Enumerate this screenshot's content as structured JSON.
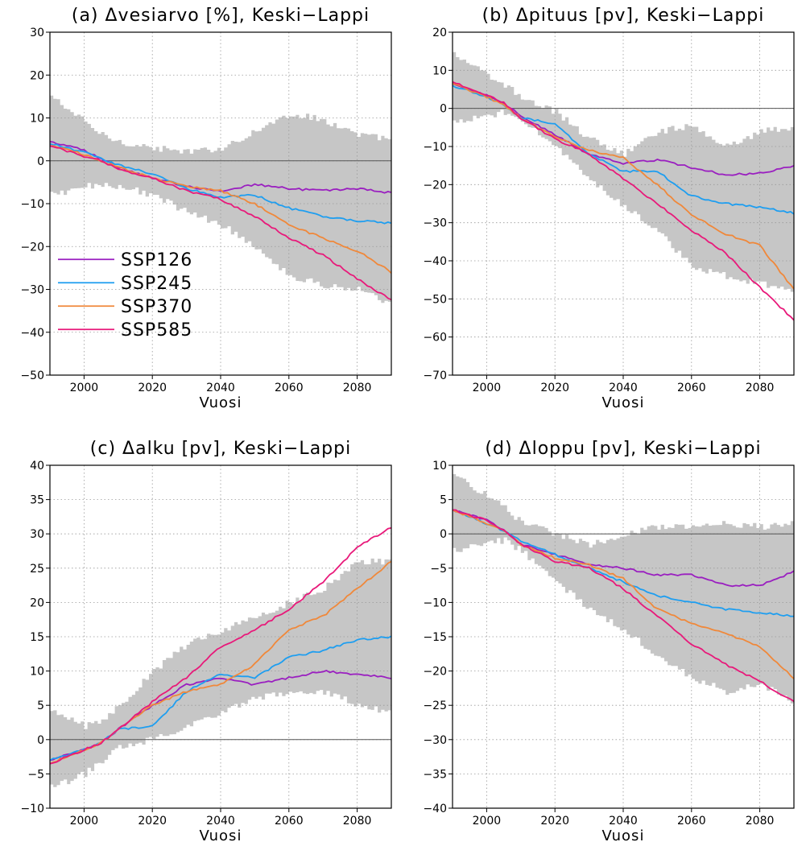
{
  "xlabel": "Vuosi",
  "colors": {
    "SSP126": "#9a1fc0",
    "SSP245": "#1e9ef0",
    "SSP370": "#f0883a",
    "SSP585": "#e8197a",
    "band": "#c6c6c6"
  },
  "legend": [
    "SSP126",
    "SSP245",
    "SSP370",
    "SSP585"
  ],
  "chart_data": [
    {
      "id": "a",
      "type": "line",
      "title": "(a) Δvesiarvo [%], Keski−Lappi",
      "xlabel": "Vuosi",
      "xlim": [
        1990,
        2090
      ],
      "ylim": [
        -50,
        30
      ],
      "yticks": [
        -50,
        -40,
        -30,
        -20,
        -10,
        0,
        10,
        20,
        30
      ],
      "xticks": [
        2000,
        2020,
        2040,
        2060,
        2080
      ],
      "x": [
        1990,
        2000,
        2005,
        2010,
        2020,
        2030,
        2040,
        2050,
        2060,
        2070,
        2080,
        2090
      ],
      "series": [
        {
          "name": "SSP126",
          "values": [
            4.5,
            2.5,
            0.5,
            -1.5,
            -4.0,
            -6.0,
            -7.0,
            -5.5,
            -6.5,
            -7.0,
            -6.5,
            -7.5
          ]
        },
        {
          "name": "SSP245",
          "values": [
            4.0,
            2.0,
            0.5,
            -1.0,
            -3.0,
            -6.5,
            -8.5,
            -8.0,
            -11.0,
            -13.0,
            -14.0,
            -14.5
          ]
        },
        {
          "name": "SSP370",
          "values": [
            3.5,
            1.5,
            0.0,
            -1.5,
            -4.0,
            -6.0,
            -7.0,
            -10.0,
            -15.0,
            -18.0,
            -21.0,
            -26.0
          ]
        },
        {
          "name": "SSP585",
          "values": [
            3.5,
            1.0,
            0.0,
            -2.0,
            -4.0,
            -7.0,
            -9.0,
            -13.0,
            -18.0,
            -22.0,
            -27.5,
            -32.5
          ]
        }
      ],
      "band": {
        "lower": [
          -8.0,
          -6.0,
          -5.5,
          -6.0,
          -8.0,
          -12.0,
          -15.0,
          -20.0,
          -27.0,
          -29.0,
          -30.0,
          -34.0
        ],
        "upper": [
          15.0,
          9.0,
          6.0,
          4.5,
          3.0,
          2.0,
          3.0,
          7.0,
          11.0,
          9.5,
          6.0,
          5.0
        ]
      },
      "grid": true,
      "legend_position": "lower-left"
    },
    {
      "id": "b",
      "type": "line",
      "title": "(b) Δpituus [pv], Keski−Lappi",
      "xlabel": "Vuosi",
      "xlim": [
        1990,
        2090
      ],
      "ylim": [
        -70,
        20
      ],
      "yticks": [
        -70,
        -60,
        -50,
        -40,
        -30,
        -20,
        -10,
        0,
        10,
        20
      ],
      "xticks": [
        2000,
        2020,
        2040,
        2060,
        2080
      ],
      "x": [
        1990,
        2000,
        2005,
        2010,
        2020,
        2030,
        2040,
        2050,
        2060,
        2070,
        2080,
        2090
      ],
      "series": [
        {
          "name": "SSP126",
          "values": [
            6.5,
            3.5,
            1.5,
            -2.0,
            -7.0,
            -12.0,
            -14.5,
            -13.5,
            -15.5,
            -17.5,
            -17.0,
            -15.0
          ]
        },
        {
          "name": "SSP245",
          "values": [
            6.0,
            3.0,
            1.0,
            -2.5,
            -4.0,
            -12.0,
            -16.5,
            -16.5,
            -23.0,
            -25.0,
            -26.0,
            -27.5
          ]
        },
        {
          "name": "SSP370",
          "values": [
            6.5,
            3.0,
            1.0,
            -2.5,
            -7.5,
            -11.0,
            -13.0,
            -20.0,
            -28.0,
            -33.0,
            -36.0,
            -47.5
          ]
        },
        {
          "name": "SSP585",
          "values": [
            7.0,
            3.5,
            1.5,
            -2.5,
            -8.0,
            -12.0,
            -18.5,
            -25.0,
            -32.0,
            -38.0,
            -47.0,
            -55.5
          ]
        }
      ],
      "band": {
        "lower": [
          -4.0,
          -2.0,
          -1.0,
          -3.0,
          -10.0,
          -19.0,
          -26.0,
          -32.0,
          -42.0,
          -44.0,
          -46.0,
          -48.0
        ],
        "upper": [
          14.5,
          8.5,
          6.0,
          3.0,
          -1.0,
          -8.0,
          -12.0,
          -6.0,
          -4.5,
          -10.0,
          -6.0,
          -5.0
        ]
      },
      "grid": true
    },
    {
      "id": "c",
      "type": "line",
      "title": "(c) Δalku [pv], Keski−Lappi",
      "xlabel": "Vuosi",
      "xlim": [
        1990,
        2090
      ],
      "ylim": [
        -10,
        40
      ],
      "yticks": [
        -10,
        -5,
        0,
        5,
        10,
        15,
        20,
        25,
        30,
        35,
        40
      ],
      "xticks": [
        2000,
        2020,
        2040,
        2060,
        2080
      ],
      "x": [
        1990,
        2000,
        2005,
        2010,
        2020,
        2030,
        2040,
        2050,
        2060,
        2070,
        2080,
        2090
      ],
      "series": [
        {
          "name": "SSP126",
          "values": [
            -3.0,
            -1.5,
            -0.5,
            1.5,
            5.0,
            8.0,
            9.0,
            8.0,
            9.0,
            10.0,
            9.5,
            9.0
          ]
        },
        {
          "name": "SSP245",
          "values": [
            -3.0,
            -1.5,
            -0.5,
            1.5,
            2.0,
            7.0,
            9.5,
            9.0,
            12.0,
            13.0,
            14.5,
            15.0
          ]
        },
        {
          "name": "SSP370",
          "values": [
            -3.5,
            -1.5,
            -0.5,
            1.5,
            5.0,
            7.0,
            8.0,
            11.0,
            16.0,
            18.0,
            22.0,
            26.0
          ]
        },
        {
          "name": "SSP585",
          "values": [
            -3.5,
            -1.5,
            -0.5,
            1.5,
            5.5,
            9.0,
            13.5,
            16.0,
            19.0,
            23.0,
            28.0,
            31.0
          ]
        }
      ],
      "band": {
        "lower": [
          -7.0,
          -5.0,
          -3.0,
          -1.0,
          0.0,
          2.0,
          4.0,
          6.0,
          7.0,
          7.0,
          5.0,
          4.0
        ],
        "upper": [
          4.0,
          2.0,
          3.0,
          5.0,
          10.0,
          14.0,
          16.0,
          18.0,
          20.0,
          22.0,
          26.0,
          26.0
        ]
      },
      "grid": true
    },
    {
      "id": "d",
      "type": "line",
      "title": "(d) Δloppu [pv], Keski−Lappi",
      "xlabel": "Vuosi",
      "xlim": [
        1990,
        2090
      ],
      "ylim": [
        -40,
        10
      ],
      "yticks": [
        -40,
        -35,
        -30,
        -25,
        -20,
        -15,
        -10,
        -5,
        0,
        5,
        10
      ],
      "xticks": [
        2000,
        2020,
        2040,
        2060,
        2080
      ],
      "x": [
        1990,
        2000,
        2005,
        2010,
        2020,
        2030,
        2040,
        2050,
        2060,
        2070,
        2080,
        2090
      ],
      "series": [
        {
          "name": "SSP126",
          "values": [
            3.5,
            2.0,
            0.5,
            -1.5,
            -3.0,
            -4.5,
            -5.0,
            -6.0,
            -6.0,
            -7.5,
            -7.5,
            -5.5
          ]
        },
        {
          "name": "SSP245",
          "values": [
            3.5,
            1.5,
            0.5,
            -1.0,
            -3.0,
            -5.0,
            -7.0,
            -9.0,
            -10.0,
            -11.0,
            -11.5,
            -12.0
          ]
        },
        {
          "name": "SSP370",
          "values": [
            3.5,
            1.5,
            0.5,
            -1.5,
            -3.5,
            -4.5,
            -6.5,
            -11.0,
            -13.0,
            -14.5,
            -16.5,
            -21.0
          ]
        },
        {
          "name": "SSP585",
          "values": [
            3.5,
            2.0,
            0.5,
            -1.5,
            -4.0,
            -5.0,
            -8.0,
            -12.0,
            -16.0,
            -19.0,
            -21.5,
            -24.5
          ]
        }
      ],
      "band": {
        "lower": [
          -2.5,
          -1.0,
          -1.0,
          -2.5,
          -7.0,
          -11.0,
          -14.0,
          -18.0,
          -21.0,
          -23.0,
          -22.0,
          -24.5
        ],
        "upper": [
          8.5,
          5.5,
          4.0,
          1.5,
          0.0,
          -1.5,
          0.0,
          1.0,
          1.0,
          1.5,
          1.0,
          1.5
        ]
      },
      "grid": true
    }
  ]
}
